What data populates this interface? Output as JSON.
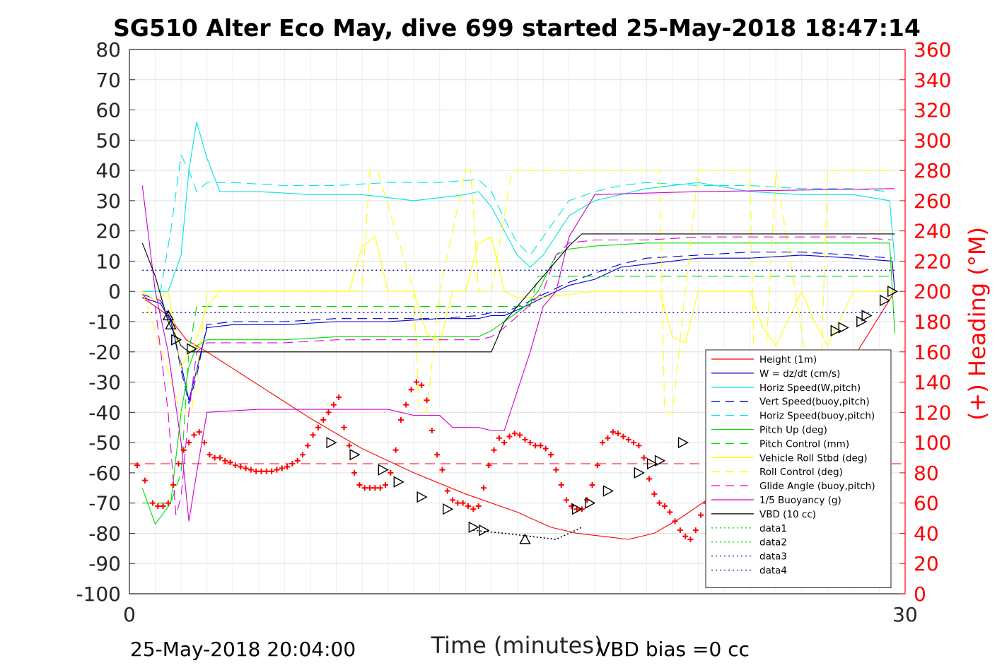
{
  "chart_data": {
    "type": "line",
    "title": "SG510 Alter Eco May, dive 699 started 25-May-2018 18:47:14",
    "xlabel": "Time (minutes)",
    "ylabel_left": "",
    "ylabel_right": "(+) Heading (°M)",
    "xlim": [
      0,
      30
    ],
    "ylim_left": [
      -100,
      80
    ],
    "ylim_right": [
      0,
      360
    ],
    "x_ticks": [
      "0",
      "30"
    ],
    "y_ticks_left": [
      "80",
      "70",
      "60",
      "50",
      "40",
      "30",
      "20",
      "10",
      "0",
      "-10",
      "-20",
      "-30",
      "-40",
      "-50",
      "-60",
      "-70",
      "-80",
      "-90",
      "-100"
    ],
    "y_ticks_right": [
      "360",
      "340",
      "320",
      "300",
      "280",
      "260",
      "240",
      "220",
      "200",
      "180",
      "160",
      "140",
      "120",
      "100",
      "80",
      "60",
      "40",
      "20",
      "0"
    ],
    "grid": true,
    "legend_position": "lower-right",
    "footer_left": "25-May-2018 20:04:00",
    "footer_right": "VBD bias =0 cc",
    "colors": {
      "height": "#ff0000",
      "w": "#0000cd",
      "horiz": "#00e5e5",
      "pitch": "#00dd00",
      "roll": "#ffff00",
      "glide": "#e000e0",
      "buoy": "#d000d0",
      "vbd": "#000000",
      "heading": "#ff0000"
    },
    "series": [
      {
        "name": "Height (1m)",
        "style": "solid",
        "color": "#ff0000",
        "x": [
          0.5,
          1.5,
          2.2,
          3.0,
          5,
          7,
          9,
          11,
          13,
          15,
          16.3,
          17.3,
          18.3,
          19.3,
          20.3,
          21.3,
          22.5,
          24,
          26,
          28,
          29.6
        ],
        "y": [
          -2,
          -8,
          -16,
          -20,
          -31,
          -42,
          -52,
          -60,
          -67,
          -73,
          -78,
          -80,
          -81,
          -82,
          -80,
          -75,
          -68,
          -57,
          -40,
          -22,
          0
        ]
      },
      {
        "name": "W = dz/dt (cm/s)",
        "style": "solid",
        "color": "#0000cd",
        "x": [
          0.5,
          1.2,
          1.6,
          2.0,
          2.3,
          2.6,
          3.0,
          4,
          6,
          8,
          10,
          12,
          13.5,
          14,
          14.5,
          15.3,
          16,
          16.5,
          17,
          18,
          19,
          20,
          21,
          22,
          24,
          26,
          28,
          29.5,
          29.6
        ],
        "y": [
          -2,
          -4,
          -10,
          -24,
          -36,
          -26,
          -12,
          -11,
          -11,
          -10,
          -10,
          -9,
          -9,
          -8,
          -8,
          -5,
          -2,
          0,
          2,
          4,
          8,
          9,
          10,
          11,
          11,
          12,
          11,
          10,
          0
        ]
      },
      {
        "name": "Horiz Speed(W,pitch)",
        "style": "solid",
        "color": "#00e5e5",
        "x": [
          0.5,
          1.5,
          2.0,
          2.3,
          2.6,
          3.0,
          3.5,
          5,
          7,
          9,
          11,
          13,
          13.5,
          14,
          14.5,
          15.0,
          15.5,
          16,
          17,
          18,
          19,
          20,
          22,
          24,
          26,
          28,
          29.4,
          29.6
        ],
        "y": [
          0,
          0,
          12,
          40,
          56,
          44,
          33,
          33,
          32,
          32,
          30,
          32,
          33,
          28,
          20,
          12,
          8,
          12,
          25,
          30,
          32,
          34,
          36,
          33,
          32,
          32,
          30,
          10
        ]
      },
      {
        "name": "Vert Speed(buoy,pitch)",
        "style": "dashed",
        "color": "#0000cd",
        "x": [
          0.5,
          1.2,
          1.6,
          2.0,
          2.3,
          2.6,
          3.0,
          4,
          6,
          8,
          10,
          12,
          13.5,
          14,
          14.5,
          15.3,
          16,
          16.5,
          17,
          18,
          19,
          20,
          22,
          24,
          26,
          28,
          29.5
        ],
        "y": [
          -1,
          -3,
          -9,
          -26,
          -37,
          -28,
          -11,
          -10,
          -10,
          -9,
          -9,
          -9,
          -8,
          -7,
          -7,
          -4,
          -1,
          1,
          3,
          6,
          9,
          11,
          12,
          13,
          13,
          12,
          11
        ]
      },
      {
        "name": "Horiz Speed(buoy,pitch)",
        "style": "dashed",
        "color": "#00e5e5",
        "x": [
          0.5,
          1.2,
          1.6,
          2.0,
          2.3,
          2.6,
          3.0,
          4,
          6,
          8,
          10,
          12,
          13.5,
          14,
          14.5,
          15.0,
          15.5,
          16,
          17,
          18,
          19,
          20,
          22,
          24,
          26,
          28,
          29.4
        ],
        "y": [
          0,
          0,
          20,
          45,
          40,
          33,
          36,
          36,
          35,
          35,
          36,
          36,
          37,
          33,
          24,
          16,
          12,
          18,
          30,
          33,
          35,
          36,
          35,
          35,
          34,
          34,
          33
        ]
      },
      {
        "name": "Pitch Up (deg)",
        "style": "solid",
        "color": "#00dd00",
        "x": [
          0.5,
          1.0,
          1.6,
          2.0,
          2.3,
          2.6,
          3.0,
          4,
          6,
          8,
          10,
          12,
          13.5,
          14,
          14.5,
          15.3,
          15.8,
          16.5,
          17,
          18,
          20,
          22,
          24,
          26,
          28,
          29.4,
          29.6
        ],
        "y": [
          -65,
          -77,
          -70,
          -40,
          -25,
          -18,
          -16,
          -16,
          -16,
          -15,
          -15,
          -15,
          -15,
          -13,
          -10,
          -5,
          0,
          12,
          14,
          15,
          16,
          16,
          16,
          16,
          16,
          16,
          -14
        ]
      },
      {
        "name": "Pitch Control (mm)",
        "style": "dashed",
        "color": "#00dd00",
        "x": [
          0.5,
          1.6,
          2.0,
          2.3,
          2.6,
          3.0,
          5,
          10,
          14,
          15.5,
          15.8,
          16.0,
          20,
          25,
          29.6
        ],
        "y": [
          -70,
          -70,
          -60,
          -20,
          -5,
          -5,
          -5,
          -5,
          -5,
          -5,
          5,
          5,
          5,
          5,
          5
        ]
      },
      {
        "name": "Vehicle Roll Stbd (deg)",
        "style": "solid",
        "color": "#ffff00",
        "x": [
          0.5,
          1.0,
          1.5,
          2.0,
          2.5,
          3.0,
          3.5,
          7,
          8.5,
          9.0,
          9.5,
          10,
          11,
          11.5,
          12,
          12.5,
          13,
          13.5,
          14,
          14.5,
          15,
          16,
          18,
          20,
          20.5,
          21,
          21.5,
          22,
          24,
          24.5,
          25,
          26,
          26.5,
          27,
          28,
          29,
          29.6
        ],
        "y": [
          0,
          -3,
          0,
          -25,
          -18,
          -5,
          0,
          0,
          0,
          15,
          18,
          0,
          0,
          -14,
          -17,
          0,
          0,
          16,
          18,
          0,
          -2,
          -2,
          0,
          0,
          0,
          -15,
          -17,
          0,
          0,
          -12,
          -18,
          0,
          -10,
          -18,
          0,
          0,
          0
        ]
      },
      {
        "name": "Roll Control (deg)",
        "style": "dashed",
        "color": "#ffff00",
        "x": [
          0.5,
          2.0,
          2.4,
          3.0,
          9.0,
          9.3,
          9.6,
          11.0,
          11.2,
          11.5,
          12.0,
          13.0,
          13.2,
          13.5,
          14.0,
          14.8,
          18,
          20.5,
          20.7,
          21.0,
          22,
          24,
          24.2,
          24.5,
          25.0,
          26.5,
          26.7,
          27.0,
          28,
          29.5
        ],
        "y": [
          0,
          -40,
          -40,
          0,
          0,
          40,
          40,
          0,
          -40,
          -40,
          0,
          40,
          40,
          0,
          0,
          40,
          40,
          40,
          -40,
          -40,
          40,
          40,
          -40,
          -40,
          40,
          -40,
          -40,
          40,
          40,
          40
        ]
      },
      {
        "name": "Glide Angle (buoy,pitch)",
        "style": "dashed",
        "color": "#e000e0",
        "x": [
          0.5,
          1.0,
          1.5,
          1.8,
          2.0,
          2.3,
          2.6,
          3.0,
          4,
          6,
          8,
          10,
          12,
          13.5,
          14,
          14.5,
          15.3,
          16,
          16.5,
          17,
          18,
          20,
          22,
          24,
          26,
          28,
          29.5
        ],
        "y": [
          -1,
          -5,
          -40,
          -74,
          -68,
          -40,
          -20,
          -17,
          -17,
          -17,
          -16,
          -16,
          -16,
          -16,
          -15,
          -12,
          -6,
          0,
          12,
          16,
          17,
          17,
          18,
          18,
          18,
          18,
          17
        ]
      },
      {
        "name": "1/5 Buoyancy (g)",
        "style": "solid",
        "color": "#d000d0",
        "x": [
          0.5,
          1.0,
          1.5,
          2.0,
          2.3,
          2.6,
          3.0,
          5,
          8,
          10,
          11,
          12,
          12.5,
          13.5,
          14.0,
          14.5,
          15.5,
          16.0,
          16.5,
          17.0,
          18,
          22,
          29.6
        ],
        "y": [
          35,
          0,
          -20,
          -50,
          -76,
          -60,
          -40,
          -39,
          -39,
          -39,
          -41,
          -41,
          -45,
          -45,
          -46,
          -46,
          -20,
          -5,
          0,
          18,
          32,
          33,
          34
        ]
      },
      {
        "name": "VBD (10 cc)",
        "style": "solid",
        "color": "#000000",
        "x": [
          0.5,
          1.0,
          1.5,
          2.0,
          2.3,
          2.6,
          3.0,
          8,
          12,
          13.5,
          14.0,
          14.5,
          15.0,
          15.5,
          16.0,
          16.5,
          17.0,
          17.5,
          18,
          22,
          29.6
        ],
        "y": [
          16,
          5,
          -10,
          -18,
          -20,
          -20,
          -20,
          -20,
          -20,
          -20,
          -20,
          -10,
          -5,
          0,
          5,
          10,
          15,
          19,
          19,
          19,
          19
        ]
      },
      {
        "name": "data1",
        "style": "dotted",
        "color": "#00dd00",
        "x": [],
        "y": []
      },
      {
        "name": "data2",
        "style": "dotted",
        "color": "#00dd00",
        "x": [],
        "y": []
      },
      {
        "name": "data3",
        "style": "dotted",
        "color": "#0000cd",
        "x": [
          0.5,
          29.6
        ],
        "y": [
          7,
          7
        ]
      },
      {
        "name": "data4",
        "style": "dotted",
        "color": "#0000cd",
        "x": [
          0.5,
          29.6
        ],
        "y": [
          -7,
          -7
        ]
      }
    ],
    "reference_lines": [
      {
        "axis": "left",
        "y": -57,
        "style": "dashed",
        "color": "#ff0000"
      }
    ],
    "black_dotted_segment": {
      "x": [
        13.3,
        14.5,
        15.5,
        16.5,
        17.5
      ],
      "y": [
        -79,
        -80,
        -81,
        -82,
        -78
      ]
    },
    "triangle_markers": {
      "up": [
        [
          1.5,
          -8
        ],
        [
          1.6,
          -11
        ],
        [
          15.3,
          -82
        ]
      ],
      "right": [
        [
          1.8,
          -16
        ],
        [
          2.4,
          -19
        ],
        [
          7.8,
          -50
        ],
        [
          8.7,
          -54
        ],
        [
          9.8,
          -59
        ],
        [
          10.4,
          -63
        ],
        [
          11.3,
          -68
        ],
        [
          12.3,
          -72
        ],
        [
          13.3,
          -78
        ],
        [
          13.7,
          -79
        ],
        [
          17.3,
          -72
        ],
        [
          17.8,
          -70
        ],
        [
          18.5,
          -66
        ],
        [
          19.7,
          -60
        ],
        [
          20.2,
          -57
        ],
        [
          20.5,
          -56
        ],
        [
          21.4,
          -50
        ],
        [
          22.7,
          -40
        ],
        [
          27.3,
          -13
        ],
        [
          27.6,
          -12
        ],
        [
          28.3,
          -10
        ],
        [
          28.5,
          -8
        ],
        [
          29.2,
          -3
        ],
        [
          29.5,
          0
        ]
      ]
    },
    "heading": {
      "axis": "right",
      "x": [
        0.3,
        0.6,
        0.9,
        1.1,
        1.3,
        1.5,
        1.7,
        1.9,
        2.1,
        2.3,
        2.5,
        2.7,
        2.9,
        3.1,
        3.3,
        3.5,
        3.7,
        3.9,
        4.1,
        4.3,
        4.5,
        4.7,
        4.9,
        5.1,
        5.3,
        5.5,
        5.7,
        5.9,
        6.1,
        6.3,
        6.5,
        6.7,
        6.9,
        7.1,
        7.3,
        7.5,
        7.7,
        7.9,
        8.1,
        8.3,
        8.5,
        8.7,
        8.9,
        9.1,
        9.3,
        9.5,
        9.7,
        9.9,
        10.1,
        10.3,
        10.5,
        10.7,
        10.9,
        11.1,
        11.3,
        11.5,
        11.7,
        11.9,
        12.1,
        12.3,
        12.5,
        12.7,
        12.9,
        13.1,
        13.3,
        13.5,
        13.7,
        13.9,
        14.1,
        14.3,
        14.5,
        14.7,
        14.9,
        15.1,
        15.3,
        15.5,
        15.7,
        15.9,
        16.1,
        16.3,
        16.5,
        16.7,
        16.9,
        17.1,
        17.3,
        17.5,
        17.7,
        17.9,
        18.1,
        18.3,
        18.5,
        18.7,
        18.9,
        19.1,
        19.3,
        19.5,
        19.7,
        19.9,
        20.1,
        20.3,
        20.5,
        20.7,
        20.9,
        21.1,
        21.3,
        21.5,
        21.7,
        21.9,
        22.1,
        22.3,
        22.5,
        22.7,
        22.9,
        23.1,
        23.3
      ],
      "y": [
        85,
        75,
        60,
        58,
        58,
        60,
        72,
        86,
        95,
        100,
        105,
        107,
        100,
        92,
        90,
        90,
        88,
        87,
        85,
        84,
        83,
        82,
        81,
        81,
        81,
        81,
        82,
        83,
        84,
        86,
        88,
        92,
        98,
        105,
        110,
        115,
        120,
        125,
        130,
        110,
        98,
        80,
        72,
        70,
        70,
        70,
        70,
        72,
        80,
        95,
        115,
        125,
        135,
        140,
        138,
        128,
        108,
        92,
        82,
        68,
        62,
        60,
        60,
        58,
        56,
        58,
        70,
        85,
        95,
        103,
        100,
        104,
        106,
        105,
        102,
        100,
        98,
        98,
        96,
        92,
        82,
        72,
        62,
        58,
        56,
        56,
        62,
        72,
        85,
        100,
        103,
        107,
        106,
        104,
        102,
        100,
        98,
        90,
        76,
        66,
        60,
        58,
        54,
        48,
        42,
        38,
        36,
        42,
        52,
        60,
        65,
        74,
        82,
        92,
        100
      ],
      "note": "red + markers"
    }
  }
}
